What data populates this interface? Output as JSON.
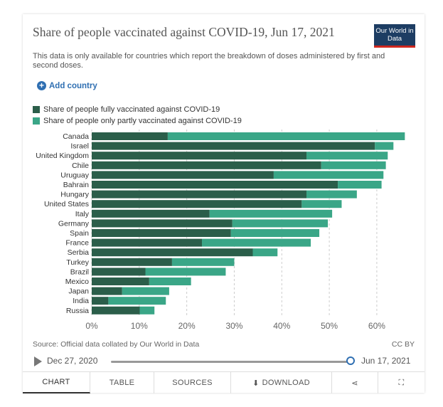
{
  "header": {
    "title": "Share of people vaccinated against COVID-19, Jun 17, 2021",
    "subtitle": "This data is only available for countries which report the breakdown of doses administered by first and second doses.",
    "logo": "Our World in Data",
    "add_country_label": "Add country"
  },
  "colors": {
    "fully": "#2b5e4a",
    "partly": "#3aa687",
    "grid": "#cccccc",
    "accent": "#2f6fb2"
  },
  "chart_data": {
    "type": "bar",
    "orientation": "horizontal",
    "stacked": true,
    "categories": [
      "Canada",
      "Israel",
      "United Kingdom",
      "Chile",
      "Uruguay",
      "Bahrain",
      "Hungary",
      "United States",
      "Italy",
      "Germany",
      "Spain",
      "France",
      "Serbia",
      "Turkey",
      "Brazil",
      "Mexico",
      "Japan",
      "India",
      "Russia"
    ],
    "series": [
      {
        "name": "Share of people fully vaccinated against COVID-19",
        "values": [
          16,
          59.6,
          45.2,
          48.3,
          38.3,
          51.8,
          45.2,
          44.2,
          24.8,
          29.6,
          29.3,
          23.2,
          33.9,
          16.9,
          11.3,
          12.1,
          6.4,
          3.5,
          10.1
        ]
      },
      {
        "name": "Share of people only partly vaccinated against COVID-19",
        "values": [
          49.9,
          3.9,
          17.1,
          13.6,
          23.1,
          9.2,
          10.6,
          8.4,
          25.8,
          20.1,
          18.6,
          22.9,
          5.2,
          13.1,
          16.9,
          8.8,
          9.9,
          12.1,
          3.1
        ]
      }
    ],
    "xticks": [
      "0%",
      "10%",
      "20%",
      "30%",
      "40%",
      "50%",
      "60%"
    ],
    "xlim": [
      0,
      66
    ],
    "grid": "vertical dashed",
    "legend": "top-left"
  },
  "footer": {
    "source": "Source: Official data collated by Our World in Data",
    "license": "CC BY",
    "timeline_start": "Dec 27, 2020",
    "timeline_end": "Jun 17, 2021",
    "timeline_position": 1.0
  },
  "tabs": [
    {
      "label": "CHART",
      "active": true
    },
    {
      "label": "TABLE",
      "active": false
    },
    {
      "label": "SOURCES",
      "active": false
    },
    {
      "label": "DOWNLOAD",
      "active": false
    }
  ]
}
